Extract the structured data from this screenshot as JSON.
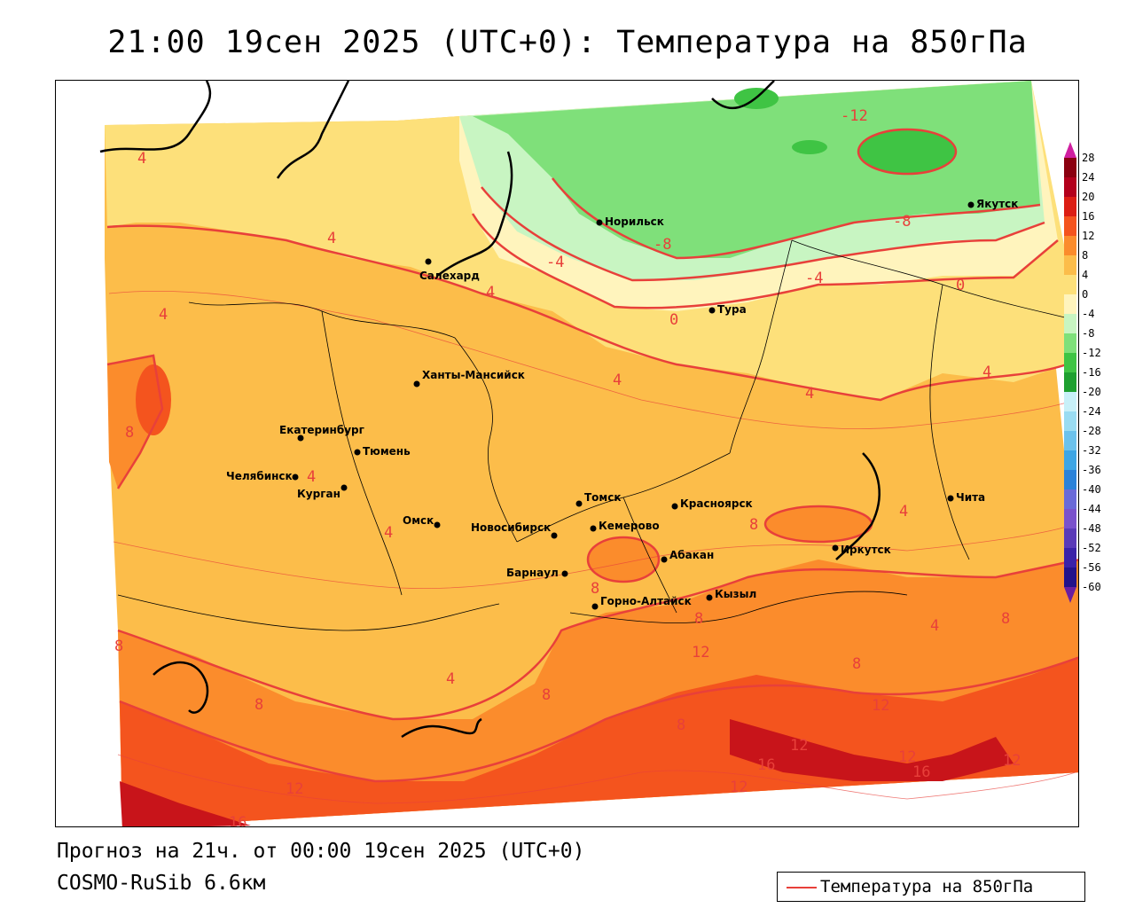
{
  "title": "21:00 19сен 2025 (UTC+0): Температура на 850гПа",
  "footer": {
    "forecast": "Прогноз на 21ч. от 00:00 19сен 2025 (UTC+0)",
    "model": "COSMO-RuSib 6.6км"
  },
  "legend": {
    "label": "Температура на 850гПа",
    "line_color": "#e8403a"
  },
  "colorbar": {
    "ticks": [
      "28",
      "24",
      "20",
      "16",
      "12",
      "8",
      "4",
      "0",
      "-4",
      "-8",
      "-12",
      "-16",
      "-20",
      "-24",
      "-28",
      "-32",
      "-36",
      "-40",
      "-44",
      "-48",
      "-52",
      "-56",
      "-60"
    ]
  },
  "cities": [
    {
      "name": "Норильск"
    },
    {
      "name": "Якутск"
    },
    {
      "name": "Салехард"
    },
    {
      "name": "Тура"
    },
    {
      "name": "Ханты-Мансийск"
    },
    {
      "name": "Екатеринбург"
    },
    {
      "name": "Тюмень"
    },
    {
      "name": "Челябинск"
    },
    {
      "name": "Курган"
    },
    {
      "name": "Омск"
    },
    {
      "name": "Новосибирск"
    },
    {
      "name": "Томск"
    },
    {
      "name": "Кемерово"
    },
    {
      "name": "Красноярск"
    },
    {
      "name": "Барнаул"
    },
    {
      "name": "Абакан"
    },
    {
      "name": "Горно-Алтайск"
    },
    {
      "name": "Кызыл"
    },
    {
      "name": "Иркутск"
    },
    {
      "name": "Чита"
    }
  ],
  "contour_labels": [
    "-12",
    "-8",
    "-8",
    "-4",
    "-4",
    "0",
    "0",
    "4",
    "4",
    "4",
    "4",
    "4",
    "4",
    "4",
    "4",
    "4",
    "4",
    "4",
    "4",
    "8",
    "8",
    "8",
    "8",
    "8",
    "8",
    "8",
    "8",
    "8",
    "8",
    "12",
    "12",
    "12",
    "12",
    "12",
    "12",
    "12",
    "16",
    "16",
    "16"
  ]
}
